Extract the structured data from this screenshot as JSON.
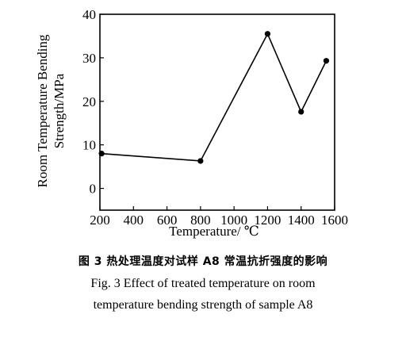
{
  "chart_data": {
    "type": "line",
    "x": [
      210,
      800,
      1200,
      1400,
      1550
    ],
    "series": [
      {
        "values": [
          8.0,
          6.3,
          35.5,
          17.6,
          29.3
        ]
      }
    ],
    "xlim": [
      200,
      1600
    ],
    "ylim": [
      -5,
      40
    ],
    "xticks": [
      "200",
      "400",
      "600",
      "800",
      "1000",
      "1200",
      "1400",
      "1600"
    ],
    "yticks": [
      "0",
      "10",
      "20",
      "30",
      "40"
    ],
    "xlabel": "Temperature/ ℃",
    "ylabel_line1": "Room Temperature Bending",
    "ylabel_line2": "Strength/MPa",
    "grid": false
  },
  "caption": {
    "cn": "图 3   热处理温度对试样 A8 常温抗折强度的影响",
    "en_line1": "Fig. 3   Effect of treated temperature on room",
    "en_line2": "temperature bending strength of sample A8"
  }
}
